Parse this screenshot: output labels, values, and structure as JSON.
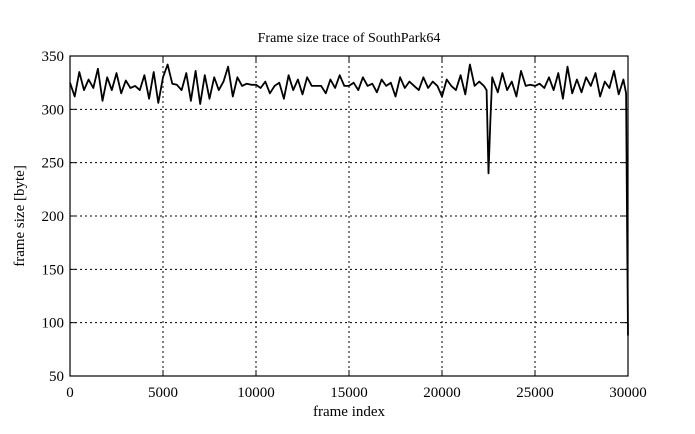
{
  "chart_data": {
    "type": "line",
    "title": "Frame size trace of SouthPark64",
    "xlabel": "frame index",
    "ylabel": "frame size [byte]",
    "xlim": [
      0,
      30000
    ],
    "ylim": [
      50,
      350
    ],
    "xticks": [
      0,
      5000,
      10000,
      15000,
      20000,
      25000,
      30000
    ],
    "yticks": [
      50,
      100,
      150,
      200,
      250,
      300,
      350
    ],
    "grid": true,
    "line_color": "#000000",
    "x": [
      0,
      250,
      500,
      750,
      1000,
      1250,
      1500,
      1750,
      2000,
      2250,
      2500,
      2750,
      3000,
      3250,
      3500,
      3750,
      4000,
      4250,
      4500,
      4750,
      5000,
      5250,
      5500,
      5750,
      6000,
      6250,
      6500,
      6750,
      7000,
      7250,
      7500,
      7750,
      8000,
      8250,
      8500,
      8750,
      9000,
      9250,
      9500,
      9750,
      10000,
      10250,
      10500,
      10750,
      11000,
      11250,
      11500,
      11750,
      12000,
      12250,
      12500,
      12750,
      13000,
      13250,
      13500,
      13750,
      14000,
      14250,
      14500,
      14750,
      15000,
      15250,
      15500,
      15750,
      16000,
      16250,
      16500,
      16750,
      17000,
      17250,
      17500,
      17750,
      18000,
      18250,
      18500,
      18750,
      19000,
      19250,
      19500,
      19750,
      20000,
      20250,
      20500,
      20750,
      21000,
      21250,
      21500,
      21750,
      22000,
      22250,
      22400,
      22500,
      22600,
      22700,
      23000,
      23250,
      23500,
      23750,
      24000,
      24250,
      24500,
      24750,
      25000,
      25250,
      25500,
      25750,
      26000,
      26250,
      26500,
      26750,
      27000,
      27250,
      27500,
      27750,
      28000,
      28250,
      28500,
      28750,
      29000,
      29250,
      29500,
      29750,
      29900,
      29950,
      30000
    ],
    "y": [
      325,
      312,
      335,
      318,
      328,
      320,
      338,
      308,
      330,
      318,
      334,
      315,
      327,
      320,
      322,
      318,
      332,
      310,
      335,
      306,
      330,
      342,
      324,
      323,
      318,
      334,
      308,
      336,
      305,
      332,
      310,
      330,
      318,
      326,
      340,
      312,
      330,
      322,
      324,
      323,
      323,
      320,
      326,
      315,
      322,
      325,
      310,
      332,
      318,
      328,
      314,
      330,
      322,
      322,
      322,
      315,
      328,
      320,
      332,
      322,
      322,
      325,
      318,
      330,
      322,
      324,
      316,
      328,
      322,
      325,
      312,
      330,
      320,
      326,
      322,
      318,
      330,
      320,
      326,
      322,
      312,
      328,
      322,
      318,
      332,
      314,
      342,
      322,
      326,
      322,
      318,
      240,
      290,
      330,
      316,
      334,
      318,
      326,
      312,
      336,
      322,
      323,
      322,
      324,
      320,
      330,
      318,
      334,
      310,
      340,
      315,
      328,
      316,
      330,
      322,
      334,
      312,
      326,
      320,
      336,
      314,
      328,
      315,
      188,
      88
    ]
  }
}
